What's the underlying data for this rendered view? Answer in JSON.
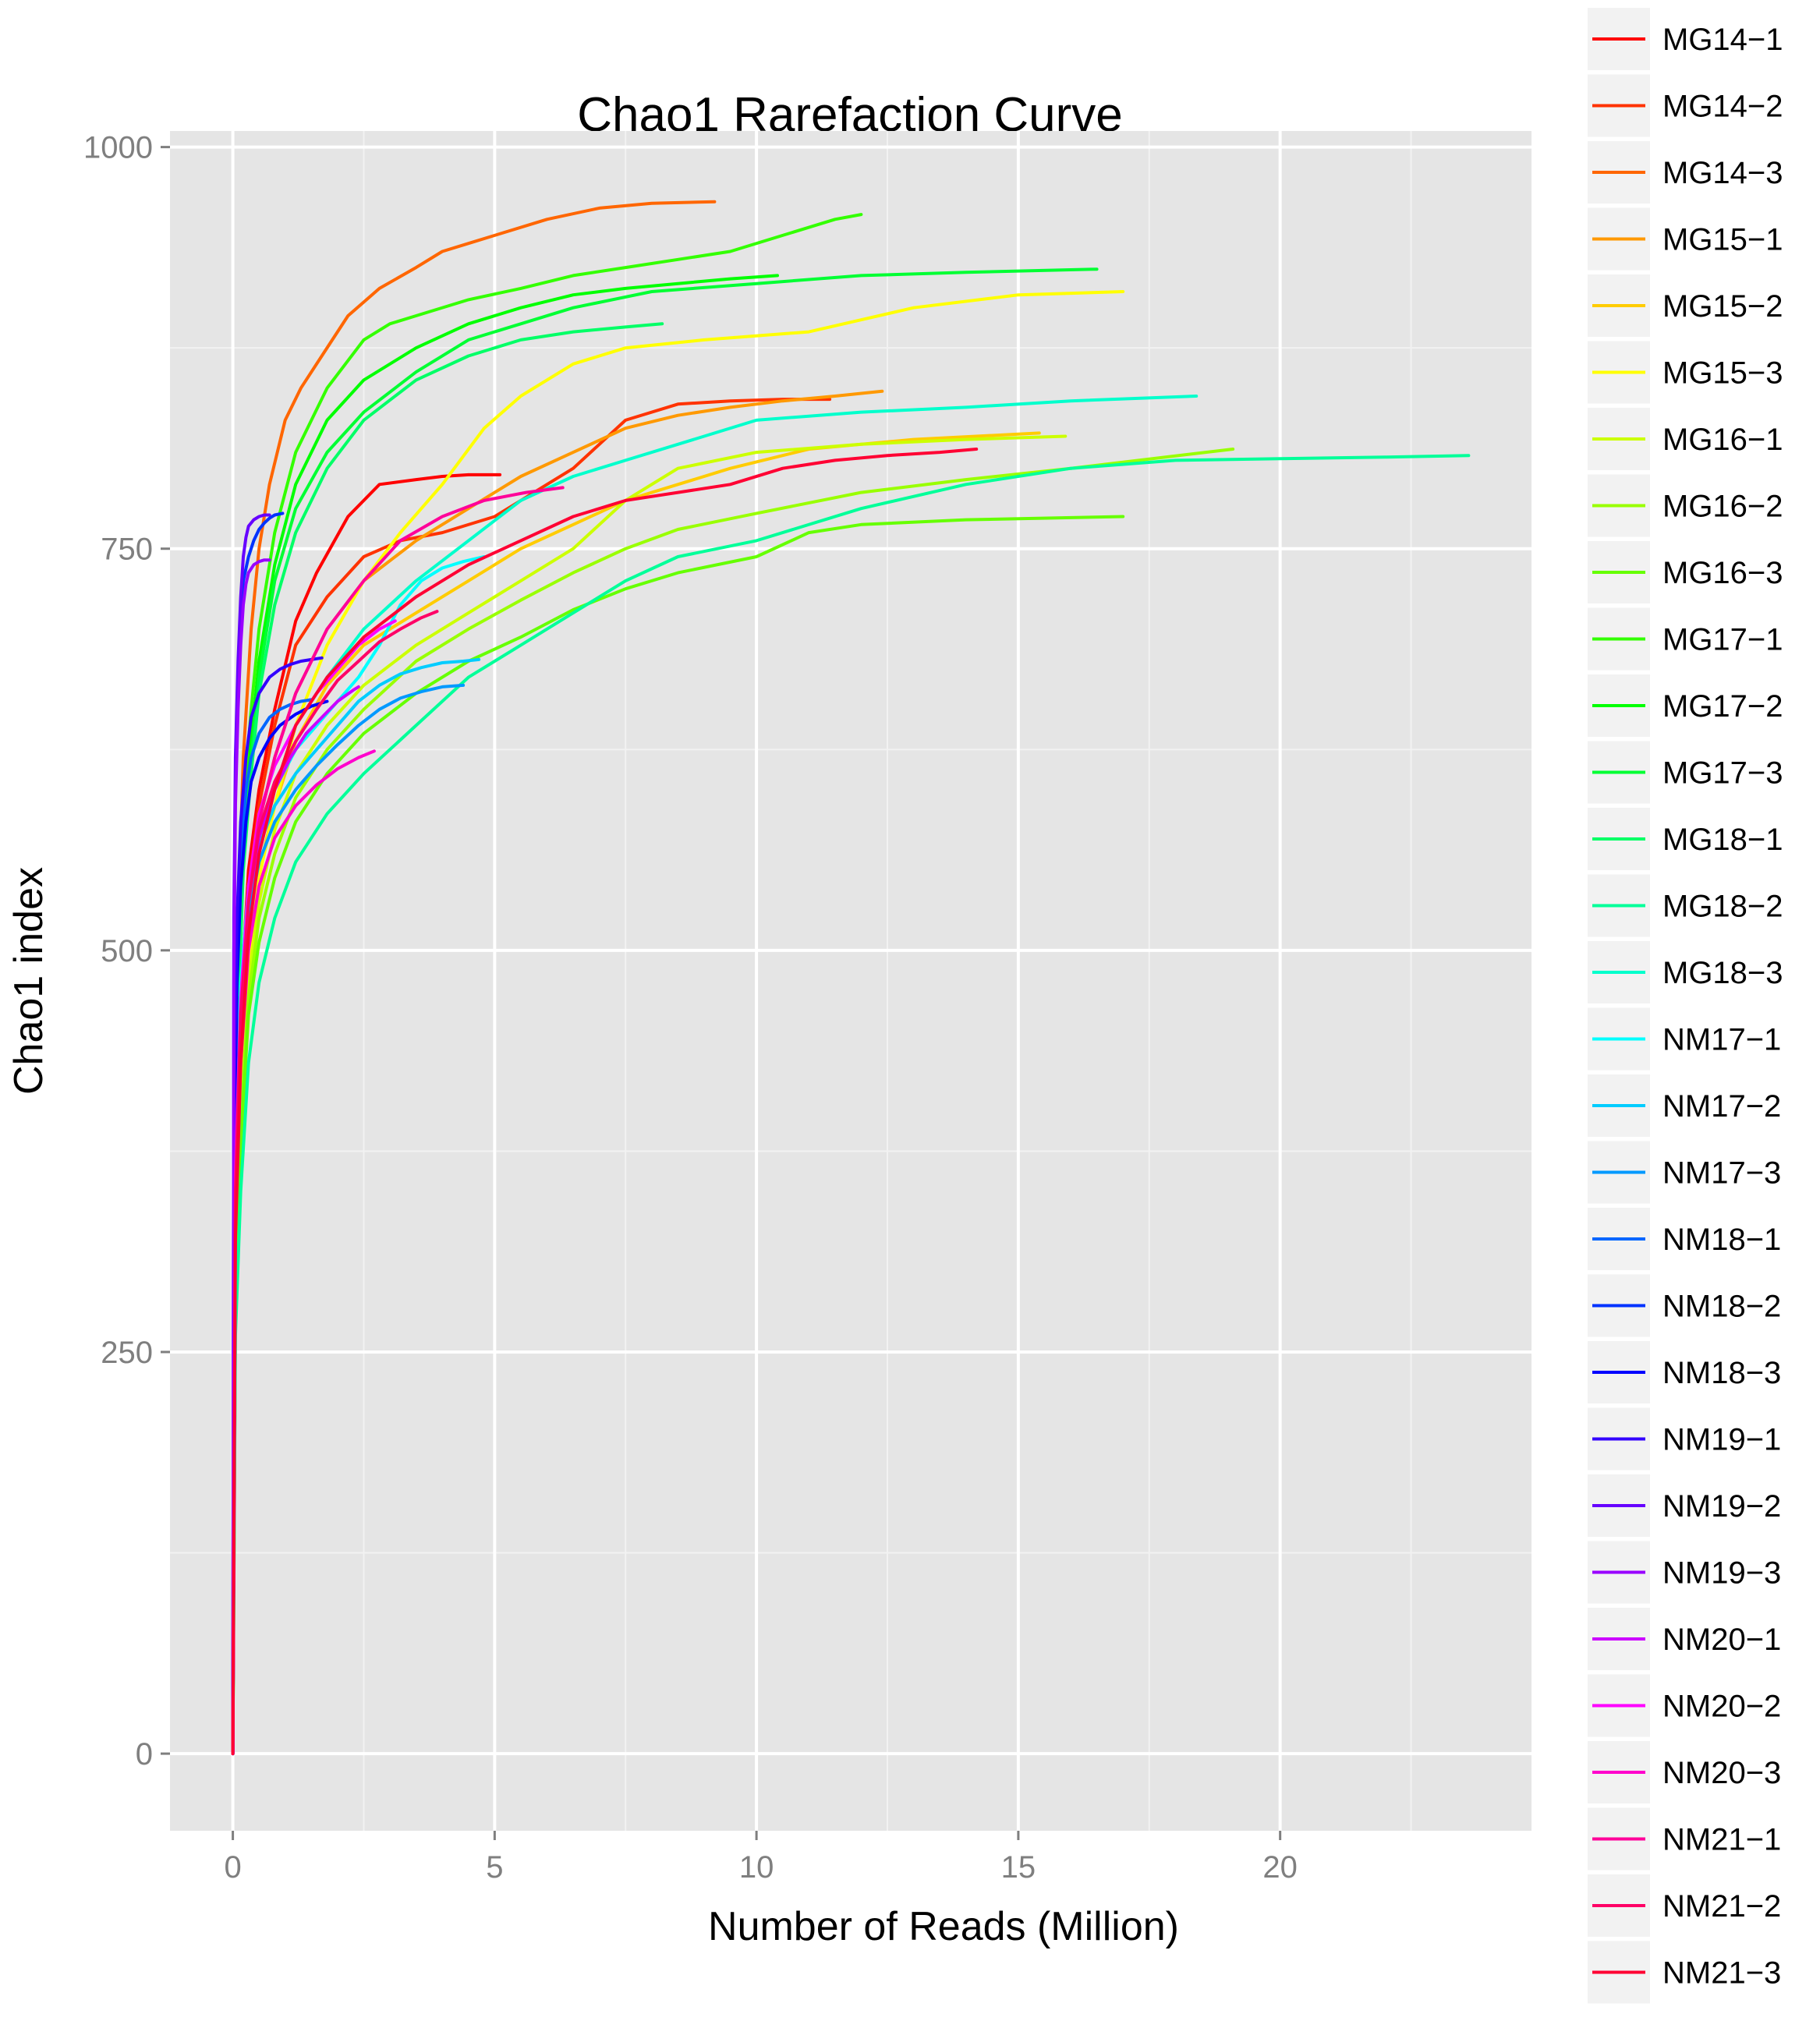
{
  "chart_data": {
    "type": "line",
    "title": "Chao1 Rarefaction Curve",
    "xlabel": "Number of Reads (Million)",
    "ylabel": "Chao1 index",
    "xlim": [
      -1.2,
      24.8
    ],
    "ylim": [
      -48,
      1010
    ],
    "xticks": [
      0,
      5,
      10,
      15,
      20
    ],
    "yticks": [
      0,
      250,
      500,
      750,
      1000
    ],
    "grid": true,
    "legend_position": "right",
    "series": [
      {
        "name": "MG14−1",
        "color": "#FF0000",
        "x": [
          0,
          0.05,
          0.15,
          0.3,
          0.5,
          0.8,
          1.2,
          1.6,
          2.2,
          2.8,
          3.5,
          4,
          4.5,
          5.1
        ],
        "y": [
          0,
          350,
          470,
          550,
          600,
          650,
          705,
          735,
          770,
          790,
          793,
          795,
          796,
          796
        ]
      },
      {
        "name": "MG14−2",
        "color": "#FF3300",
        "x": [
          0,
          0.05,
          0.15,
          0.3,
          0.5,
          0.8,
          1.2,
          1.8,
          2.5,
          3.2,
          4,
          5,
          5.5,
          6.5,
          7.5,
          8.5,
          9.5,
          10.5,
          11.4
        ],
        "y": [
          0,
          340,
          460,
          540,
          590,
          640,
          690,
          720,
          745,
          755,
          760,
          770,
          780,
          800,
          830,
          840,
          842,
          843,
          843
        ]
      },
      {
        "name": "MG14−3",
        "color": "#FF6600",
        "x": [
          0,
          0.05,
          0.1,
          0.2,
          0.35,
          0.5,
          0.7,
          1,
          1.3,
          1.7,
          2.2,
          2.8,
          3.5,
          4,
          4.5,
          5,
          6,
          7,
          8,
          9.2
        ],
        "y": [
          0,
          400,
          520,
          620,
          700,
          750,
          790,
          830,
          850,
          870,
          895,
          912,
          925,
          935,
          940,
          945,
          955,
          962,
          965,
          966
        ]
      },
      {
        "name": "MG15−1",
        "color": "#FF9900",
        "x": [
          0,
          0.05,
          0.15,
          0.3,
          0.5,
          0.8,
          1.2,
          1.8,
          2.5,
          3.5,
          4.5,
          5.5,
          6.5,
          7.5,
          8.5,
          9.5,
          10.5,
          11.5,
          12.4
        ],
        "y": [
          0,
          330,
          450,
          530,
          580,
          620,
          660,
          700,
          730,
          755,
          775,
          795,
          810,
          825,
          833,
          838,
          842,
          845,
          848
        ]
      },
      {
        "name": "MG15−2",
        "color": "#FFCC00",
        "x": [
          0,
          0.05,
          0.15,
          0.3,
          0.5,
          0.8,
          1.2,
          1.8,
          2.5,
          3.5,
          4.5,
          5.5,
          6.5,
          7.5,
          8.5,
          9.5,
          11,
          13,
          15.4
        ],
        "y": [
          0,
          310,
          420,
          500,
          550,
          590,
          630,
          665,
          690,
          710,
          730,
          750,
          765,
          780,
          790,
          800,
          812,
          818,
          822
        ]
      },
      {
        "name": "MG15−3",
        "color": "#FFFF00",
        "x": [
          0,
          0.05,
          0.15,
          0.3,
          0.5,
          0.8,
          1.2,
          1.8,
          2.5,
          3.2,
          4,
          4.8,
          5.5,
          6.5,
          7.5,
          9,
          11,
          13,
          15,
          17
        ],
        "y": [
          0,
          300,
          410,
          490,
          545,
          590,
          640,
          690,
          730,
          760,
          790,
          825,
          845,
          865,
          875,
          880,
          885,
          900,
          908,
          910
        ]
      },
      {
        "name": "MG16−1",
        "color": "#CCFF00",
        "x": [
          0,
          0.05,
          0.15,
          0.3,
          0.5,
          0.8,
          1.2,
          1.8,
          2.5,
          3.5,
          4.5,
          5.5,
          6.5,
          7.5,
          8.5,
          10,
          12,
          14,
          15.9
        ],
        "y": [
          0,
          290,
          400,
          480,
          530,
          575,
          610,
          640,
          665,
          690,
          710,
          730,
          750,
          780,
          800,
          810,
          815,
          818,
          820
        ]
      },
      {
        "name": "MG16−2",
        "color": "#99FF00",
        "x": [
          0,
          0.05,
          0.15,
          0.3,
          0.5,
          0.8,
          1.2,
          1.8,
          2.5,
          3.5,
          4.5,
          5.5,
          6.5,
          7.5,
          8.5,
          10,
          12,
          14,
          16,
          19.1
        ],
        "y": [
          0,
          280,
          390,
          470,
          520,
          560,
          595,
          625,
          650,
          680,
          700,
          718,
          735,
          750,
          762,
          772,
          785,
          793,
          800,
          812
        ]
      },
      {
        "name": "MG16−3",
        "color": "#66FF00",
        "x": [
          0,
          0.05,
          0.15,
          0.3,
          0.5,
          0.8,
          1.2,
          1.8,
          2.5,
          3.5,
          4.5,
          5.5,
          6.5,
          7.5,
          8.5,
          10,
          11,
          12,
          14,
          17
        ],
        "y": [
          0,
          270,
          380,
          460,
          505,
          545,
          580,
          610,
          635,
          660,
          680,
          695,
          712,
          725,
          735,
          745,
          760,
          765,
          768,
          770
        ]
      },
      {
        "name": "MG17−1",
        "color": "#33FF00",
        "x": [
          0,
          0.05,
          0.1,
          0.2,
          0.35,
          0.5,
          0.8,
          1.2,
          1.8,
          2.5,
          3,
          3.5,
          4.5,
          5.5,
          6.5,
          7.5,
          8.5,
          9.5,
          10.5,
          11.5,
          12
        ],
        "y": [
          0,
          380,
          500,
          590,
          650,
          700,
          760,
          810,
          850,
          880,
          890,
          895,
          905,
          912,
          920,
          925,
          930,
          935,
          945,
          955,
          958
        ]
      },
      {
        "name": "MG17−2",
        "color": "#00FF00",
        "x": [
          0,
          0.05,
          0.1,
          0.2,
          0.35,
          0.5,
          0.8,
          1.2,
          1.8,
          2.5,
          3.5,
          4.5,
          5.5,
          6.5,
          7.5,
          8.5,
          9.5,
          10.4
        ],
        "y": [
          0,
          360,
          480,
          570,
          630,
          680,
          740,
          790,
          830,
          855,
          875,
          890,
          900,
          908,
          912,
          915,
          918,
          920
        ]
      },
      {
        "name": "MG17−3",
        "color": "#00FF33",
        "x": [
          0,
          0.05,
          0.1,
          0.2,
          0.35,
          0.5,
          0.8,
          1.2,
          1.8,
          2.5,
          3.5,
          4.5,
          5.5,
          6.5,
          8,
          10,
          12,
          14,
          16.5
        ],
        "y": [
          0,
          350,
          470,
          560,
          620,
          670,
          730,
          775,
          810,
          835,
          860,
          880,
          890,
          900,
          910,
          915,
          920,
          922,
          924
        ]
      },
      {
        "name": "MG18−1",
        "color": "#00FF66",
        "x": [
          0,
          0.05,
          0.1,
          0.2,
          0.35,
          0.5,
          0.8,
          1.2,
          1.8,
          2.5,
          3.5,
          4.5,
          5.5,
          6.5,
          7.5,
          8.2
        ],
        "y": [
          0,
          340,
          460,
          550,
          610,
          660,
          715,
          760,
          800,
          830,
          855,
          870,
          880,
          885,
          888,
          890
        ]
      },
      {
        "name": "MG18−2",
        "color": "#00FF99",
        "x": [
          0,
          0.05,
          0.15,
          0.3,
          0.5,
          0.8,
          1.2,
          1.8,
          2.5,
          3.5,
          4.5,
          5.5,
          6.5,
          7.5,
          8.5,
          10,
          12,
          14,
          16,
          18,
          20,
          22,
          23.6
        ],
        "y": [
          0,
          260,
          350,
          430,
          480,
          520,
          555,
          585,
          610,
          640,
          670,
          690,
          710,
          730,
          745,
          755,
          775,
          790,
          800,
          805,
          806,
          807,
          808
        ]
      },
      {
        "name": "MG18−3",
        "color": "#00FFCC",
        "x": [
          0,
          0.05,
          0.15,
          0.3,
          0.5,
          0.8,
          1.2,
          1.8,
          2.5,
          3.5,
          4.5,
          5.5,
          6.5,
          7.5,
          8.5,
          10,
          12,
          14,
          16,
          18.4
        ],
        "y": [
          0,
          320,
          430,
          510,
          560,
          600,
          640,
          670,
          700,
          730,
          755,
          780,
          795,
          805,
          815,
          830,
          835,
          838,
          842,
          845
        ]
      },
      {
        "name": "NM17−1",
        "color": "#00FFFF",
        "x": [
          0,
          0.05,
          0.15,
          0.3,
          0.5,
          0.8,
          1.2,
          1.6,
          2,
          2.4,
          2.8,
          3.2,
          3.6,
          4,
          4.4,
          4.8
        ],
        "y": [
          0,
          380,
          480,
          540,
          575,
          600,
          625,
          640,
          655,
          670,
          690,
          715,
          730,
          738,
          742,
          745
        ]
      },
      {
        "name": "NM17−2",
        "color": "#00CCFF",
        "x": [
          0,
          0.05,
          0.15,
          0.3,
          0.5,
          0.8,
          1.2,
          1.6,
          2,
          2.4,
          2.8,
          3.2,
          3.6,
          4,
          4.4,
          4.7
        ],
        "y": [
          0,
          370,
          470,
          530,
          565,
          590,
          610,
          625,
          640,
          655,
          665,
          672,
          676,
          679,
          680,
          681
        ]
      },
      {
        "name": "NM17−3",
        "color": "#0099FF",
        "x": [
          0,
          0.05,
          0.15,
          0.3,
          0.5,
          0.8,
          1.2,
          1.6,
          2,
          2.4,
          2.8,
          3.2,
          3.6,
          4,
          4.4
        ],
        "y": [
          0,
          360,
          460,
          520,
          555,
          580,
          600,
          615,
          628,
          640,
          650,
          657,
          661,
          664,
          665
        ]
      },
      {
        "name": "NM18−1",
        "color": "#0066FF",
        "x": [
          0,
          0.03,
          0.08,
          0.15,
          0.25,
          0.35,
          0.5,
          0.7,
          0.9,
          1.1,
          1.3,
          1.5
        ],
        "y": [
          0,
          400,
          500,
          560,
          600,
          620,
          635,
          645,
          650,
          653,
          655,
          656
        ]
      },
      {
        "name": "NM18−2",
        "color": "#0033FF",
        "x": [
          0,
          0.02,
          0.05,
          0.1,
          0.15,
          0.2,
          0.3,
          0.4,
          0.5,
          0.6,
          0.7,
          0.8,
          0.95
        ],
        "y": [
          0,
          500,
          600,
          670,
          710,
          730,
          745,
          755,
          762,
          766,
          769,
          771,
          772
        ]
      },
      {
        "name": "NM18−3",
        "color": "#0000FF",
        "x": [
          0,
          0.03,
          0.08,
          0.15,
          0.25,
          0.35,
          0.5,
          0.7,
          0.9,
          1.2,
          1.5,
          1.8
        ],
        "y": [
          0,
          380,
          480,
          540,
          580,
          605,
          620,
          632,
          640,
          647,
          652,
          655
        ]
      },
      {
        "name": "NM19−1",
        "color": "#3300FF",
        "x": [
          0,
          0.03,
          0.08,
          0.15,
          0.25,
          0.35,
          0.5,
          0.7,
          0.9,
          1.1,
          1.3,
          1.5,
          1.7
        ],
        "y": [
          0,
          420,
          520,
          580,
          620,
          645,
          660,
          670,
          675,
          678,
          680,
          681,
          682
        ]
      },
      {
        "name": "NM19−2",
        "color": "#6600FF",
        "x": [
          0,
          0.02,
          0.05,
          0.1,
          0.15,
          0.2,
          0.25,
          0.3,
          0.4,
          0.5,
          0.6,
          0.7
        ],
        "y": [
          0,
          520,
          620,
          680,
          720,
          745,
          757,
          764,
          768,
          770,
          771,
          771
        ]
      },
      {
        "name": "NM19−3",
        "color": "#9900FF",
        "x": [
          0,
          0.02,
          0.05,
          0.1,
          0.15,
          0.2,
          0.25,
          0.3,
          0.4,
          0.5,
          0.6,
          0.7
        ],
        "y": [
          0,
          480,
          590,
          650,
          690,
          715,
          728,
          735,
          740,
          742,
          743,
          743
        ]
      },
      {
        "name": "NM20−1",
        "color": "#CC00FF",
        "x": [
          0,
          0.05,
          0.15,
          0.3,
          0.5,
          0.8,
          1.1,
          1.4,
          1.7,
          2,
          2.3,
          2.4
        ],
        "y": [
          0,
          350,
          460,
          530,
          570,
          600,
          620,
          635,
          645,
          655,
          662,
          664
        ]
      },
      {
        "name": "NM20−2",
        "color": "#FF00FF",
        "x": [
          0,
          0.05,
          0.15,
          0.3,
          0.5,
          0.8,
          1.2,
          1.6,
          2,
          2.4,
          2.8,
          3.1
        ],
        "y": [
          0,
          360,
          470,
          540,
          585,
          615,
          640,
          660,
          675,
          690,
          700,
          705
        ]
      },
      {
        "name": "NM20−3",
        "color": "#FF00CC",
        "x": [
          0,
          0.05,
          0.15,
          0.3,
          0.5,
          0.8,
          1.2,
          1.6,
          2,
          2.4,
          2.7
        ],
        "y": [
          0,
          330,
          430,
          500,
          540,
          570,
          590,
          603,
          613,
          620,
          624
        ]
      },
      {
        "name": "NM21−1",
        "color": "#FF0099",
        "x": [
          0,
          0.05,
          0.15,
          0.3,
          0.5,
          0.8,
          1.2,
          1.8,
          2.5,
          3.2,
          4,
          4.8,
          5.6,
          6.3
        ],
        "y": [
          0,
          340,
          450,
          530,
          580,
          620,
          660,
          700,
          730,
          755,
          770,
          780,
          785,
          788
        ]
      },
      {
        "name": "NM21−2",
        "color": "#FF0066",
        "x": [
          0,
          0.05,
          0.15,
          0.3,
          0.5,
          0.8,
          1.2,
          1.6,
          2,
          2.4,
          2.8,
          3.2,
          3.6,
          3.9
        ],
        "y": [
          0,
          350,
          460,
          530,
          575,
          605,
          630,
          650,
          668,
          680,
          692,
          700,
          707,
          711
        ]
      },
      {
        "name": "NM21−3",
        "color": "#FF0033",
        "x": [
          0,
          0.05,
          0.15,
          0.3,
          0.5,
          0.8,
          1.2,
          1.8,
          2.5,
          3.5,
          4.5,
          5.5,
          6.5,
          7.5,
          8.5,
          9.5,
          10.5,
          11.5,
          12.5,
          13.5,
          14.2
        ],
        "y": [
          0,
          320,
          430,
          510,
          560,
          600,
          640,
          670,
          695,
          720,
          740,
          755,
          770,
          780,
          785,
          790,
          800,
          805,
          808,
          810,
          812
        ]
      }
    ]
  }
}
